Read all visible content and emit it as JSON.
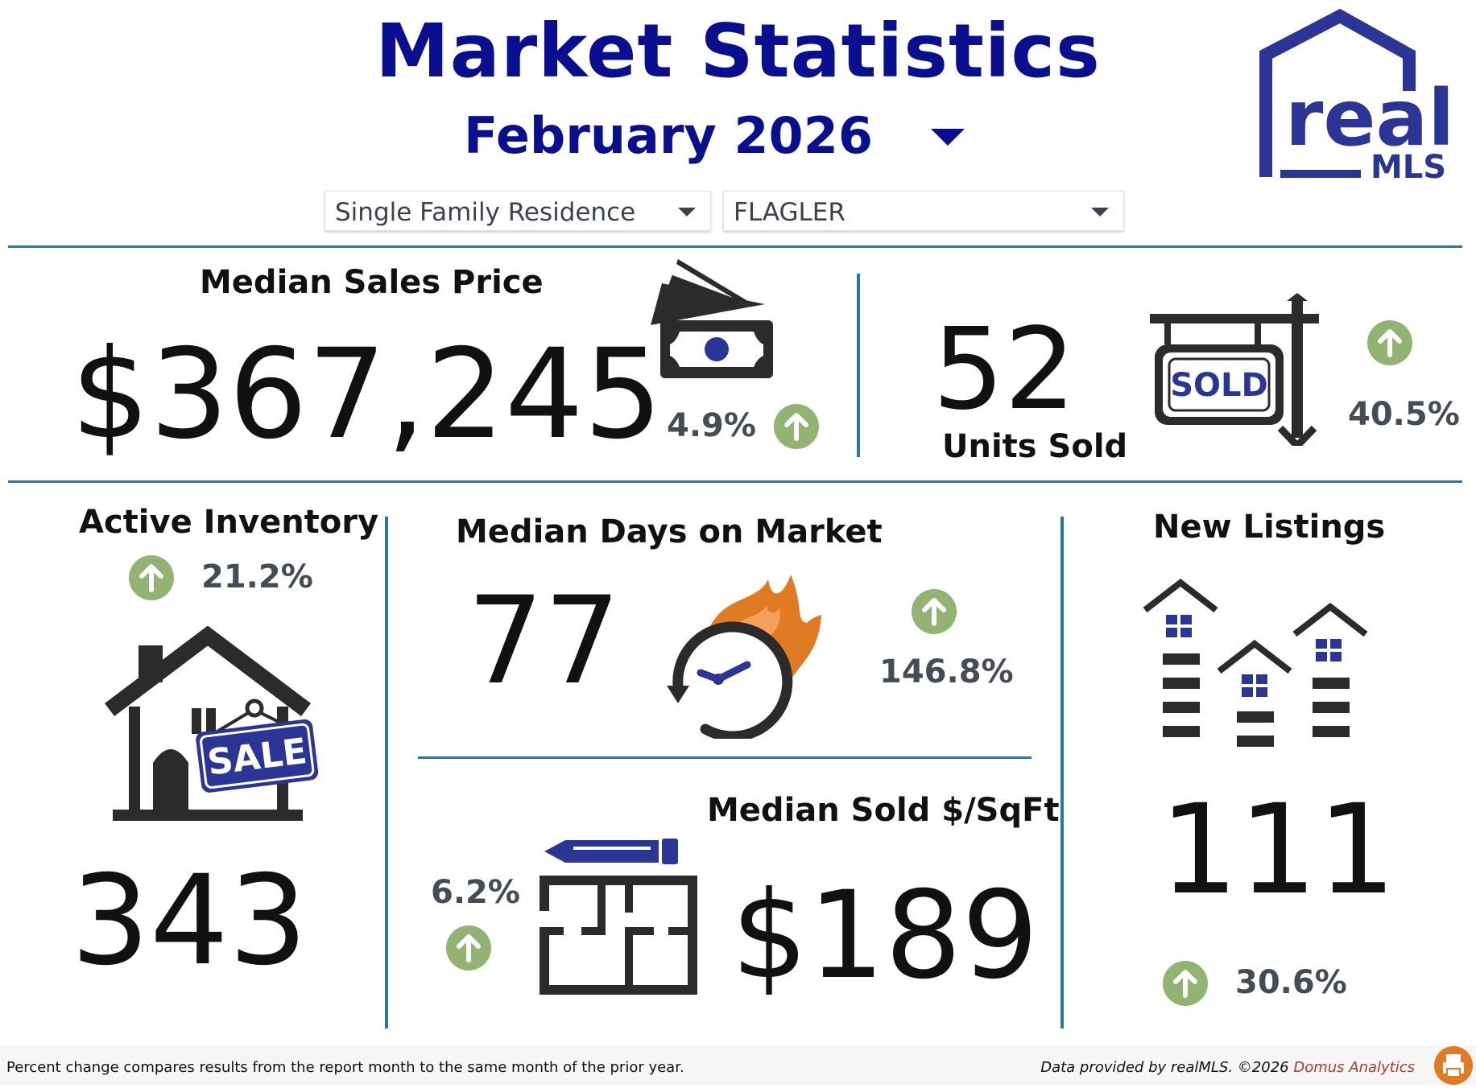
{
  "header": {
    "title": "Market Statistics",
    "period": "February 2026",
    "property_type": "Single Family Residence",
    "area": "FLAGLER"
  },
  "logo": {
    "line1": "real",
    "line2": "MLS"
  },
  "median_sales_price": {
    "label": "Median Sales Price",
    "value": "$367,245",
    "change": "4.9%",
    "direction": "up"
  },
  "units_sold": {
    "label": "Units Sold",
    "value": "52",
    "change": "40.5%",
    "direction": "up",
    "sign_text": "SOLD"
  },
  "active_inventory": {
    "label": "Active Inventory",
    "value": "343",
    "change": "21.2%",
    "direction": "up",
    "sign_text": "SALE"
  },
  "median_days_on_market": {
    "label": "Median Days on Market",
    "value": "77",
    "change": "146.8%",
    "direction": "up"
  },
  "median_sold_per_sqft": {
    "label": "Median Sold $/SqFt",
    "value": "$189",
    "change": "6.2%",
    "direction": "up"
  },
  "new_listings": {
    "label": "New Listings",
    "value": "111",
    "change": "30.6%",
    "direction": "up"
  },
  "footer": {
    "note": "Percent change compares results from the report month to the same month of the prior year.",
    "credit": "Data provided by realMLS. ©2026 ",
    "credit_brand": "Domus Analytics"
  },
  "colors": {
    "title": "#0a0f8f",
    "divider": "#2e74a8",
    "up_badge": "#93b372",
    "accent_blue": "#2b3595",
    "flame": "#e07b24",
    "icon_dark": "#2b2b2b"
  },
  "icons": [
    "caret-down-icon",
    "money-icon",
    "sold-sign-icon",
    "house-sale-icon",
    "clock-flame-icon",
    "floorplan-icon",
    "houses-icon",
    "arrow-up-icon",
    "print-icon"
  ]
}
